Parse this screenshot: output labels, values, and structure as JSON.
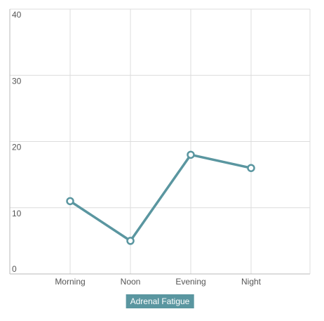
{
  "chart_data": {
    "type": "line",
    "categories": [
      "Morning",
      "Noon",
      "Evening",
      "Night"
    ],
    "series": [
      {
        "name": "Adrenal Fatigue",
        "values": [
          11,
          5,
          18,
          16
        ],
        "color": "#5a96a0"
      }
    ],
    "ylim": [
      0,
      40
    ],
    "yticks": [
      "0",
      "10",
      "20",
      "30",
      "40"
    ],
    "grid": true,
    "legend_position": "bottom-center"
  }
}
